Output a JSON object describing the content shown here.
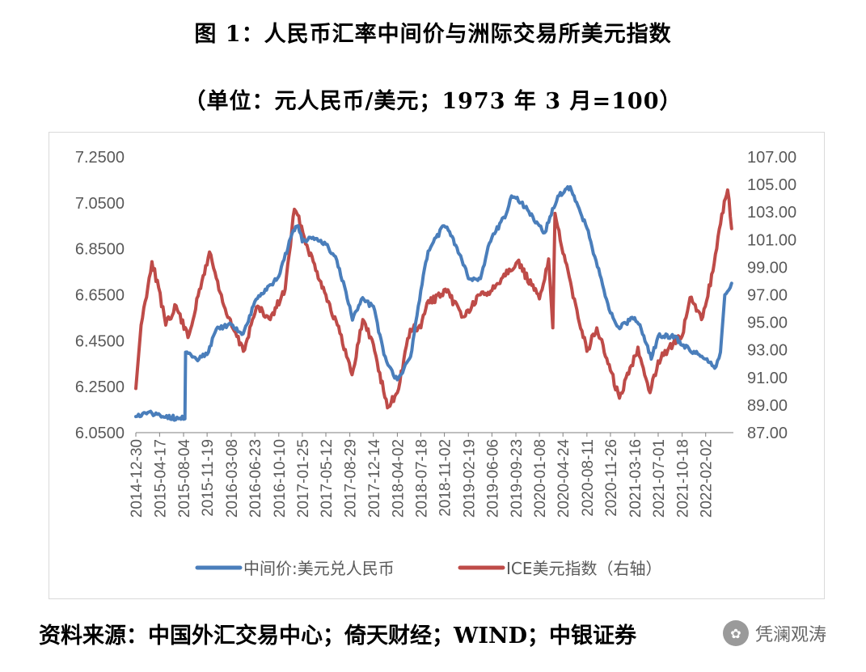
{
  "title_line1": "图 1：人民币汇率中间价与洲际交易所美元指数",
  "title_line2": "（单位：元人民币/美元；1973 年 3 月=100）",
  "source": "资料来源：中国外汇交易中心；倚天财经；WIND；中银证券",
  "watermark": "凭澜观涛",
  "colors": {
    "cny": "#4a7ebb",
    "dxy": "#be4b48",
    "axis": "#7f7f7f",
    "text": "#595959"
  },
  "chart_data": {
    "type": "line",
    "title": "",
    "xlabel": "",
    "ylabel": "",
    "x_ticks": [
      "2014-12-30",
      "2015-04-17",
      "2015-08-04",
      "2015-11-19",
      "2016-03-08",
      "2016-06-23",
      "2016-10-10",
      "2017-01-25",
      "2017-05-12",
      "2017-08-29",
      "2017-12-14",
      "2018-04-02",
      "2018-07-18",
      "2018-11-02",
      "2019-02-19",
      "2019-06-06",
      "2019-09-23",
      "2020-01-08",
      "2020-04-24",
      "2020-08-11",
      "2020-11-26",
      "2021-03-16",
      "2021-07-01",
      "2021-10-18",
      "2022-02-02"
    ],
    "y_left": {
      "min": 6.05,
      "max": 7.25,
      "ticks": [
        "7.2500",
        "7.0500",
        "6.8500",
        "6.6500",
        "6.4500",
        "6.2500",
        "6.0500"
      ]
    },
    "y_right": {
      "min": 87,
      "max": 107,
      "ticks": [
        "107.00",
        "105.00",
        "103.00",
        "101.00",
        "99.00",
        "97.00",
        "95.00",
        "93.00",
        "91.00",
        "89.00",
        "87.00"
      ]
    },
    "legend_position": "bottom",
    "series": [
      {
        "name": "中间价:美元兑人民币",
        "axis": "left",
        "x": [
          "2014-12-30",
          "2015-03-01",
          "2015-05-01",
          "2015-08-10",
          "2015-08-13",
          "2015-10-01",
          "2015-11-19",
          "2015-12-31",
          "2016-03-08",
          "2016-05-01",
          "2016-06-23",
          "2016-08-15",
          "2016-10-10",
          "2016-12-15",
          "2017-01-06",
          "2017-01-25",
          "2017-03-15",
          "2017-05-12",
          "2017-07-01",
          "2017-08-29",
          "2017-09-10",
          "2017-10-20",
          "2017-12-14",
          "2018-01-31",
          "2018-03-15",
          "2018-04-02",
          "2018-06-01",
          "2018-07-18",
          "2018-08-20",
          "2018-10-31",
          "2018-11-20",
          "2019-01-15",
          "2019-02-19",
          "2019-04-15",
          "2019-05-20",
          "2019-06-06",
          "2019-08-10",
          "2019-09-03",
          "2019-09-23",
          "2019-11-15",
          "2020-01-08",
          "2020-02-01",
          "2020-04-01",
          "2020-05-27",
          "2020-08-11",
          "2020-11-26",
          "2021-01-01",
          "2021-03-16",
          "2021-04-15",
          "2021-05-31",
          "2021-07-01",
          "2021-09-15",
          "2021-10-18",
          "2022-02-02",
          "2022-03-15",
          "2022-04-10",
          "2022-04-30",
          "2022-05-31"
        ],
        "values": [
          6.12,
          6.14,
          6.12,
          6.11,
          6.4,
          6.37,
          6.39,
          6.5,
          6.52,
          6.48,
          6.62,
          6.67,
          6.73,
          6.93,
          6.95,
          6.88,
          6.9,
          6.87,
          6.8,
          6.6,
          6.54,
          6.63,
          6.6,
          6.39,
          6.3,
          6.28,
          6.38,
          6.67,
          6.84,
          6.95,
          6.93,
          6.82,
          6.72,
          6.72,
          6.86,
          6.9,
          7.0,
          7.08,
          7.07,
          7.02,
          6.95,
          6.92,
          7.08,
          7.12,
          6.94,
          6.57,
          6.51,
          6.55,
          6.5,
          6.37,
          6.47,
          6.47,
          6.43,
          6.37,
          6.33,
          6.4,
          6.65,
          6.7
        ]
      },
      {
        "name": "ICE美元指数（右轴）",
        "axis": "right",
        "x": [
          "2014-12-30",
          "2015-01-23",
          "2015-03-13",
          "2015-04-13",
          "2015-05-15",
          "2015-07-01",
          "2015-08-24",
          "2015-11-30",
          "2015-12-31",
          "2016-02-15",
          "2016-05-02",
          "2016-06-30",
          "2016-09-01",
          "2016-11-08",
          "2016-12-20",
          "2017-01-03",
          "2017-02-15",
          "2017-05-12",
          "2017-07-15",
          "2017-09-08",
          "2017-10-27",
          "2017-12-14",
          "2018-02-16",
          "2018-04-02",
          "2018-05-31",
          "2018-07-18",
          "2018-08-15",
          "2018-11-12",
          "2019-01-31",
          "2019-04-15",
          "2019-06-06",
          "2019-07-31",
          "2019-09-30",
          "2020-01-08",
          "2020-02-19",
          "2020-03-09",
          "2020-03-19",
          "2020-04-24",
          "2020-06-15",
          "2020-08-11",
          "2020-09-25",
          "2020-11-26",
          "2021-01-06",
          "2021-03-31",
          "2021-05-25",
          "2021-07-01",
          "2021-08-20",
          "2021-10-18",
          "2021-11-23",
          "2022-01-14",
          "2022-03-07",
          "2022-04-28",
          "2022-05-13",
          "2022-05-31"
        ],
        "values": [
          90.2,
          94.8,
          99.4,
          97.5,
          94.8,
          96.2,
          93.9,
          100.1,
          98.2,
          95.6,
          92.9,
          96.1,
          95.2,
          97.4,
          103.2,
          102.8,
          100.6,
          97.0,
          94.2,
          91.2,
          95.2,
          93.4,
          88.8,
          89.9,
          94.5,
          94.6,
          96.4,
          97.2,
          95.4,
          97.0,
          97.3,
          98.5,
          99.4,
          96.7,
          99.6,
          94.6,
          102.9,
          100.0,
          96.7,
          92.9,
          94.6,
          91.5,
          89.5,
          93.2,
          89.9,
          92.2,
          93.2,
          94.0,
          96.8,
          95.2,
          98.7,
          103.8,
          104.6,
          101.8
        ]
      }
    ]
  }
}
